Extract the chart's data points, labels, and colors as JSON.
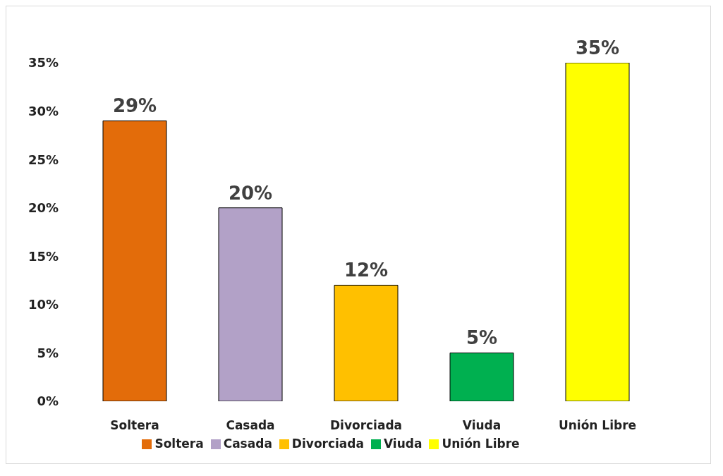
{
  "chart_data": {
    "type": "bar",
    "categories": [
      "Soltera",
      "Casada",
      "Divorciada",
      "Viuda",
      "Unión Libre"
    ],
    "series": [
      {
        "name": "Soltera",
        "color": "#e36c0a",
        "values": [
          29,
          null,
          null,
          null,
          null
        ],
        "value_labels": [
          "29%",
          null,
          null,
          null,
          null
        ]
      },
      {
        "name": "Casada",
        "color": "#b2a1c7",
        "values": [
          null,
          20,
          null,
          null,
          null
        ],
        "value_labels": [
          null,
          "20%",
          null,
          null,
          null
        ]
      },
      {
        "name": "Divorciada",
        "color": "#ffc000",
        "values": [
          null,
          null,
          12,
          null,
          null
        ],
        "value_labels": [
          null,
          null,
          "12%",
          null,
          null
        ]
      },
      {
        "name": "Viuda",
        "color": "#00b050",
        "values": [
          null,
          null,
          null,
          5,
          null
        ],
        "value_labels": [
          null,
          null,
          null,
          "5%",
          null
        ]
      },
      {
        "name": "Unión Libre",
        "color": "#ffff00",
        "values": [
          null,
          null,
          null,
          null,
          35
        ],
        "value_labels": [
          null,
          null,
          null,
          null,
          "35%"
        ]
      }
    ],
    "stacked": true,
    "ylim": [
      0,
      35
    ],
    "yticks": [
      {
        "value": 0,
        "label": "0%"
      },
      {
        "value": 5,
        "label": "5%"
      },
      {
        "value": 10,
        "label": "10%"
      },
      {
        "value": 15,
        "label": "15%"
      },
      {
        "value": 20,
        "label": "20%"
      },
      {
        "value": 25,
        "label": "25%"
      },
      {
        "value": 30,
        "label": "30%"
      },
      {
        "value": 35,
        "label": "35%"
      }
    ],
    "grid": false,
    "legend": "bottom"
  }
}
